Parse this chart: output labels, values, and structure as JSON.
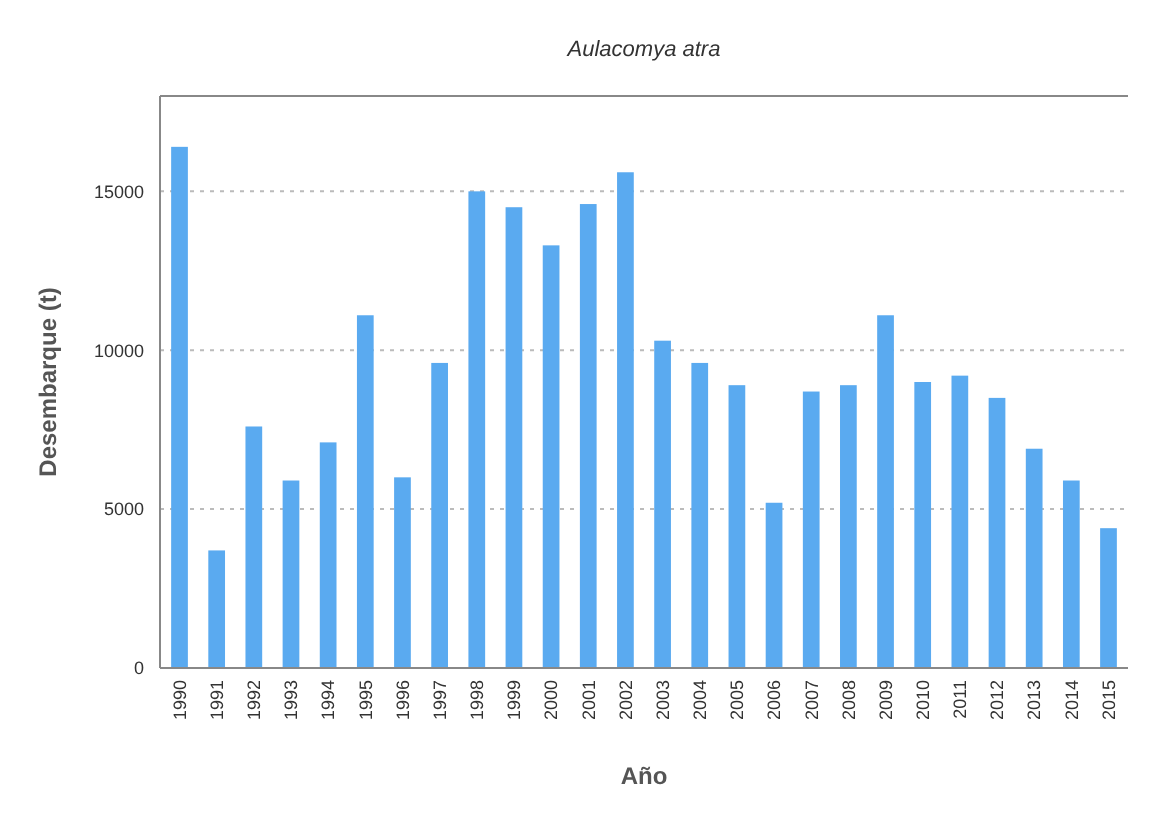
{
  "chart_data": {
    "type": "bar",
    "title": "Aulacomya atra",
    "xlabel": "Año",
    "ylabel": "Desembarque (t)",
    "categories": [
      "1990",
      "1991",
      "1992",
      "1993",
      "1994",
      "1995",
      "1996",
      "1997",
      "1998",
      "1999",
      "2000",
      "2001",
      "2002",
      "2003",
      "2004",
      "2005",
      "2006",
      "2007",
      "2008",
      "2009",
      "2010",
      "2011",
      "2012",
      "2013",
      "2014",
      "2015"
    ],
    "values": [
      16400,
      3700,
      7600,
      5900,
      7100,
      11100,
      6000,
      9600,
      15000,
      14500,
      13300,
      14600,
      15600,
      10300,
      9600,
      8900,
      5200,
      8700,
      8900,
      11100,
      9000,
      9200,
      8500,
      6900,
      5900,
      4400
    ],
    "color": "#5aaaf0",
    "ylim": [
      0,
      18000
    ],
    "yticks": [
      0,
      5000,
      10000,
      15000
    ],
    "grid": "y"
  }
}
